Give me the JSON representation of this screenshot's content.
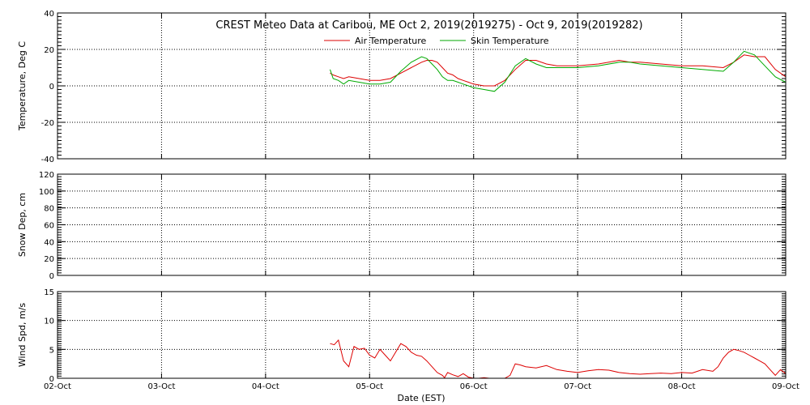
{
  "title": "CREST Meteo Data at Caribou, ME   Oct  2, 2019(2019275) - Oct  9, 2019(2019282)",
  "xlabel": "Date (EST)",
  "x_ticks": [
    "02-Oct",
    "03-Oct",
    "04-Oct",
    "05-Oct",
    "06-Oct",
    "07-Oct",
    "08-Oct",
    "09-Oct"
  ],
  "colors": {
    "air": "#dd0000",
    "skin": "#00aa00",
    "frame": "#000000"
  },
  "chart_data": [
    {
      "type": "line",
      "ylabel": "Temperature, Deg C",
      "xlim": [
        0,
        7
      ],
      "ylim": [
        -40,
        40
      ],
      "yticks": [
        -40,
        -20,
        0,
        20,
        40
      ],
      "grid": true,
      "legend": "top-center",
      "series": [
        {
          "name": "Air Temperature",
          "color": "#dd0000",
          "x": [
            2.62,
            2.65,
            2.7,
            2.75,
            2.8,
            2.9,
            3.0,
            3.1,
            3.2,
            3.3,
            3.4,
            3.5,
            3.55,
            3.6,
            3.65,
            3.7,
            3.75,
            3.8,
            3.85,
            3.9,
            3.95,
            4.0,
            4.1,
            4.2,
            4.3,
            4.4,
            4.5,
            4.6,
            4.7,
            4.8,
            5.0,
            5.2,
            5.4,
            5.5,
            5.6,
            5.8,
            6.0,
            6.2,
            6.4,
            6.5,
            6.6,
            6.7,
            6.8,
            6.9,
            7.0
          ],
          "y": [
            7,
            6,
            5,
            4,
            5,
            4,
            3,
            3,
            4,
            7,
            10,
            13,
            14,
            14,
            13,
            10,
            7,
            6,
            4,
            3,
            2,
            1,
            0,
            0,
            3,
            9,
            14,
            14,
            12,
            11,
            11,
            12,
            14,
            13,
            13,
            12,
            11,
            11,
            10,
            13,
            17,
            16,
            16,
            9,
            5
          ]
        },
        {
          "name": "Skin Temperature",
          "color": "#00aa00",
          "x": [
            2.62,
            2.65,
            2.7,
            2.75,
            2.8,
            2.9,
            3.0,
            3.1,
            3.2,
            3.3,
            3.4,
            3.5,
            3.55,
            3.6,
            3.65,
            3.7,
            3.75,
            3.8,
            3.85,
            3.9,
            3.95,
            4.0,
            4.1,
            4.2,
            4.3,
            4.4,
            4.5,
            4.6,
            4.7,
            4.8,
            5.0,
            5.2,
            5.4,
            5.5,
            5.6,
            5.8,
            6.0,
            6.2,
            6.4,
            6.5,
            6.6,
            6.7,
            6.8,
            6.9,
            7.0
          ],
          "y": [
            9,
            4,
            3,
            1,
            3,
            2,
            1,
            1,
            2,
            8,
            13,
            16,
            15,
            12,
            9,
            5,
            3,
            3,
            2,
            1,
            0,
            -1,
            -2,
            -3,
            2,
            11,
            15,
            12,
            10,
            10,
            10,
            11,
            13,
            13,
            12,
            11,
            10,
            9,
            8,
            13,
            19,
            17,
            11,
            5,
            2
          ]
        }
      ]
    },
    {
      "type": "line",
      "ylabel": "Snow Dep, cm",
      "xlim": [
        0,
        7
      ],
      "ylim": [
        0,
        120
      ],
      "yticks": [
        0,
        20,
        40,
        60,
        80,
        100,
        120
      ],
      "grid": true,
      "series": []
    },
    {
      "type": "line",
      "ylabel": "Wind Spd, m/s",
      "xlim": [
        0,
        7
      ],
      "ylim": [
        0,
        15
      ],
      "yticks": [
        0,
        5,
        10,
        15
      ],
      "grid": true,
      "series": [
        {
          "color": "#dd0000",
          "x": [
            2.62,
            2.66,
            2.7,
            2.75,
            2.8,
            2.85,
            2.9,
            2.95,
            3.0,
            3.05,
            3.1,
            3.15,
            3.2,
            3.25,
            3.3,
            3.35,
            3.4,
            3.45,
            3.5,
            3.55,
            3.6,
            3.65,
            3.7,
            3.72,
            3.75,
            3.8,
            3.85,
            3.9,
            3.95,
            4.0,
            4.05,
            4.1,
            4.15,
            4.2,
            4.3,
            4.35,
            4.4,
            4.45,
            4.5,
            4.6,
            4.7,
            4.8,
            4.9,
            5.0,
            5.1,
            5.2,
            5.3,
            5.4,
            5.5,
            5.6,
            5.7,
            5.8,
            5.9,
            6.0,
            6.1,
            6.2,
            6.3,
            6.35,
            6.4,
            6.45,
            6.5,
            6.55,
            6.6,
            6.65,
            6.7,
            6.75,
            6.8,
            6.85,
            6.9,
            6.95,
            7.0
          ],
          "y": [
            6,
            5.8,
            6.6,
            3,
            2,
            5.5,
            5,
            5.2,
            4,
            3.5,
            5,
            4,
            3,
            4.5,
            6,
            5.5,
            4.5,
            4,
            3.8,
            3,
            2,
            1,
            0.5,
            0.1,
            1,
            0.6,
            0.3,
            0.8,
            0.2,
            0,
            0,
            0.1,
            0,
            0,
            0,
            0.5,
            2.5,
            2.3,
            2,
            1.8,
            2.2,
            1.5,
            1.2,
            1,
            1.3,
            1.5,
            1.4,
            1,
            0.8,
            0.7,
            0.8,
            0.9,
            0.8,
            1,
            0.9,
            1.5,
            1.2,
            2,
            3.5,
            4.5,
            5,
            4.8,
            4.5,
            4,
            3.5,
            3,
            2.5,
            1.5,
            0.5,
            1.5,
            0.8
          ]
        }
      ]
    }
  ]
}
